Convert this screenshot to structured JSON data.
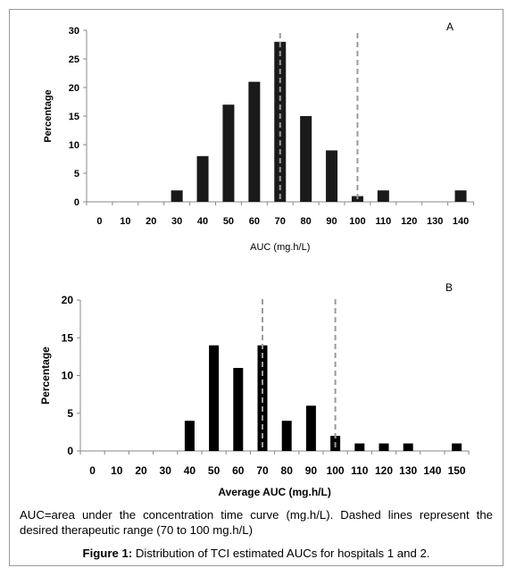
{
  "chart_data": [
    {
      "type": "bar",
      "panel_label": "A",
      "categories": [
        "0",
        "10",
        "20",
        "30",
        "40",
        "50",
        "60",
        "70",
        "80",
        "90",
        "100",
        "110",
        "120",
        "130",
        "140"
      ],
      "values": [
        0,
        0,
        0,
        2,
        8,
        17,
        21,
        28,
        15,
        9,
        1,
        2,
        0,
        0,
        2
      ],
      "xlabel": "AUC (mg.h/L)",
      "ylabel": "Percentage",
      "ylim": [
        0,
        30
      ],
      "yticks": [
        "0",
        "5",
        "10",
        "15",
        "20",
        "25",
        "30"
      ],
      "dashed_lines_at": [
        "70",
        "100"
      ],
      "grid": false,
      "bar_color": "#1a1a1a"
    },
    {
      "type": "bar",
      "panel_label": "B",
      "categories": [
        "0",
        "10",
        "20",
        "30",
        "40",
        "50",
        "60",
        "70",
        "80",
        "90",
        "100",
        "110",
        "120",
        "130",
        "140",
        "150"
      ],
      "values": [
        0,
        0,
        0,
        0,
        4,
        14,
        11,
        14,
        4,
        6,
        2,
        1,
        1,
        1,
        0,
        1
      ],
      "xlabel": "Average AUC (mg.h/L)",
      "ylabel": "Percentage",
      "ylim": [
        0,
        20
      ],
      "yticks": [
        "0",
        "5",
        "10",
        "15",
        "20"
      ],
      "dashed_lines_at": [
        "70",
        "100"
      ],
      "grid": false,
      "bar_color": "#000000"
    }
  ],
  "caption": {
    "note": "AUC=area under the concentration time curve (mg.h/L). Dashed lines represent the desired therapeutic range (70 to 100 mg.h/L)",
    "figure_label": "Figure 1:",
    "figure_text": " Distribution of TCI estimated AUCs for hospitals 1 and 2."
  }
}
